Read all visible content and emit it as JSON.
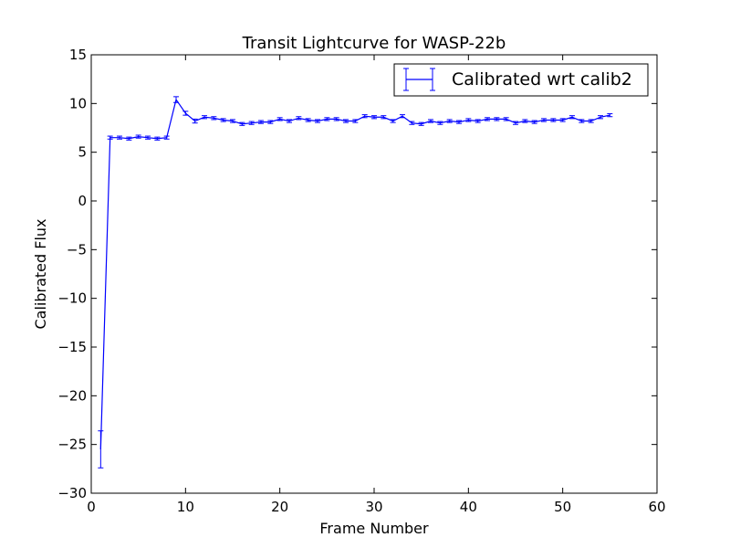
{
  "chart_data": {
    "type": "line",
    "title": "Transit Lightcurve for WASP-22b",
    "xlabel": "Frame Number",
    "ylabel": "Calibrated Flux",
    "xlim": [
      0,
      60
    ],
    "ylim": [
      -30,
      15
    ],
    "xticks": [
      0,
      10,
      20,
      30,
      40,
      50,
      60
    ],
    "yticks": [
      15,
      10,
      5,
      0,
      -5,
      -10,
      -15,
      -20,
      -25,
      -30
    ],
    "xtick_labels": [
      "0",
      "10",
      "20",
      "30",
      "40",
      "50",
      "60"
    ],
    "ytick_labels": [
      "15",
      "10",
      "5",
      "0",
      "−5",
      "−10",
      "−15",
      "−20",
      "−25",
      "−30"
    ],
    "grid": false,
    "legend_position": "top-right",
    "series": [
      {
        "name": "Calibrated wrt calib2",
        "color": "#0000ff",
        "error_bars": true,
        "x": [
          1,
          2,
          3,
          4,
          5,
          6,
          7,
          8,
          9,
          10,
          11,
          12,
          13,
          14,
          15,
          16,
          17,
          18,
          19,
          20,
          21,
          22,
          23,
          24,
          25,
          26,
          27,
          28,
          29,
          30,
          31,
          32,
          33,
          34,
          35,
          36,
          37,
          38,
          39,
          40,
          41,
          42,
          43,
          44,
          45,
          46,
          47,
          48,
          49,
          50,
          51,
          52,
          53,
          54,
          55
        ],
        "y": [
          -25.5,
          6.5,
          6.5,
          6.4,
          6.6,
          6.5,
          6.4,
          6.5,
          10.4,
          9.0,
          8.2,
          8.6,
          8.5,
          8.3,
          8.2,
          7.9,
          8.0,
          8.1,
          8.1,
          8.4,
          8.2,
          8.5,
          8.3,
          8.2,
          8.4,
          8.4,
          8.2,
          8.2,
          8.7,
          8.6,
          8.6,
          8.2,
          8.7,
          8.0,
          7.9,
          8.2,
          8.0,
          8.2,
          8.1,
          8.3,
          8.2,
          8.4,
          8.4,
          8.4,
          8.0,
          8.2,
          8.1,
          8.3,
          8.3,
          8.3,
          8.6,
          8.2,
          8.2,
          8.6,
          8.8
        ],
        "yerr": [
          1.9,
          0.15,
          0.15,
          0.15,
          0.15,
          0.15,
          0.15,
          0.15,
          0.3,
          0.2,
          0.2,
          0.15,
          0.15,
          0.15,
          0.15,
          0.15,
          0.15,
          0.15,
          0.15,
          0.15,
          0.15,
          0.15,
          0.15,
          0.15,
          0.15,
          0.15,
          0.15,
          0.15,
          0.15,
          0.15,
          0.15,
          0.15,
          0.15,
          0.15,
          0.15,
          0.15,
          0.15,
          0.15,
          0.15,
          0.15,
          0.15,
          0.15,
          0.15,
          0.15,
          0.15,
          0.15,
          0.15,
          0.15,
          0.15,
          0.15,
          0.15,
          0.15,
          0.15,
          0.15,
          0.15
        ]
      }
    ]
  }
}
